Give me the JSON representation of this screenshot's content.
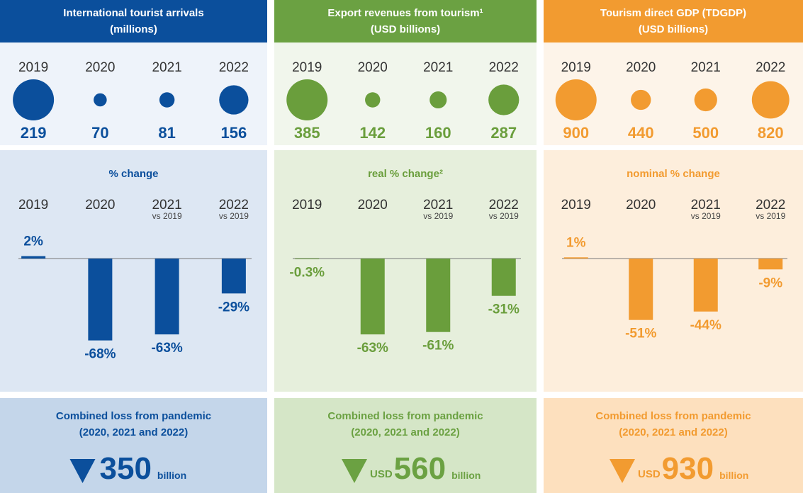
{
  "chart_data": [
    {
      "type": "bubble",
      "title": "International tourist arrivals",
      "subtitle": "(millions)",
      "categories": [
        "2019",
        "2020",
        "2021",
        "2022"
      ],
      "values": [
        219,
        70,
        81,
        156
      ],
      "color": "#0b4f9c"
    },
    {
      "type": "bubble",
      "title": "Export revenues from tourism¹",
      "subtitle": "(USD billions)",
      "categories": [
        "2019",
        "2020",
        "2021",
        "2022"
      ],
      "values": [
        385,
        142,
        160,
        287
      ],
      "color": "#6a9e3c"
    },
    {
      "type": "bubble",
      "title": "Tourism direct GDP (TDGDP)",
      "subtitle": "(USD billions)",
      "categories": [
        "2019",
        "2020",
        "2021",
        "2022"
      ],
      "values": [
        900,
        440,
        500,
        820
      ],
      "color": "#f29b30"
    },
    {
      "type": "bar",
      "title": "% change",
      "categories": [
        "2019",
        "2020",
        "2021",
        "2022"
      ],
      "category_notes": [
        null,
        null,
        "vs 2019",
        "vs 2019"
      ],
      "values": [
        2,
        -68,
        -63,
        -29
      ],
      "value_labels": [
        "2%",
        "-68%",
        "-63%",
        "-29%"
      ],
      "color": "#0b4f9c"
    },
    {
      "type": "bar",
      "title": "real % change²",
      "categories": [
        "2019",
        "2020",
        "2021",
        "2022"
      ],
      "category_notes": [
        null,
        null,
        "vs 2019",
        "vs 2019"
      ],
      "values": [
        -0.3,
        -63,
        -61,
        -31
      ],
      "value_labels": [
        "-0.3%",
        "-63%",
        "-61%",
        "-31%"
      ],
      "color": "#6a9e3c"
    },
    {
      "type": "bar",
      "title": "nominal % change",
      "categories": [
        "2019",
        "2020",
        "2021",
        "2022"
      ],
      "category_notes": [
        null,
        null,
        "vs 2019",
        "vs 2019"
      ],
      "values": [
        1,
        -51,
        -44,
        -9
      ],
      "value_labels": [
        "1%",
        "-51%",
        "-44%",
        "-9%"
      ],
      "color": "#f29b30"
    }
  ],
  "losses": [
    {
      "title": "Combined loss from pandemic",
      "subtitle": "(2020, 2021 and 2022)",
      "value": 350,
      "unit": "billion"
    },
    {
      "title": "Combined loss from pandemic",
      "subtitle": "(2020, 2021 and 2022)",
      "prefix": "USD",
      "value": 560,
      "unit": "billion"
    },
    {
      "title": "Combined loss from pandemic",
      "subtitle": "(2020, 2021 and 2022)",
      "prefix": "USD",
      "value": 930,
      "unit": "billion"
    }
  ]
}
